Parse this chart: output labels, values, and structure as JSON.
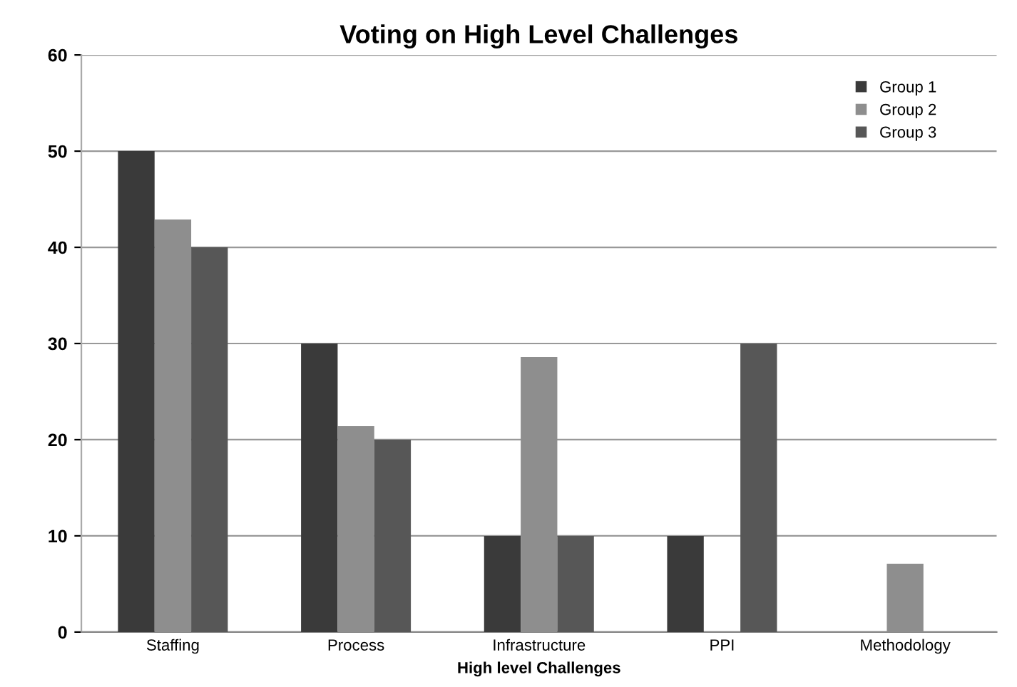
{
  "chart_data": {
    "type": "bar",
    "title": "Voting on High Level Challenges",
    "xlabel": "High level Challenges",
    "categories": [
      "Staffing",
      "Process",
      "Infrastructure",
      "PPI",
      "Methodology"
    ],
    "series": [
      {
        "name": "Group 1",
        "color": "#3a3a3a",
        "values": [
          50,
          30,
          10,
          10,
          0
        ]
      },
      {
        "name": "Group 2",
        "color": "#8e8e8e",
        "values": [
          42.9,
          21.4,
          28.6,
          0,
          7.1
        ]
      },
      {
        "name": "Group 3",
        "color": "#575757",
        "values": [
          40,
          20,
          10,
          30,
          0
        ]
      }
    ],
    "ylim": [
      0,
      60
    ],
    "yticks": [
      0,
      10,
      20,
      30,
      40,
      50,
      60
    ],
    "grid": "y",
    "legend": "top right"
  }
}
